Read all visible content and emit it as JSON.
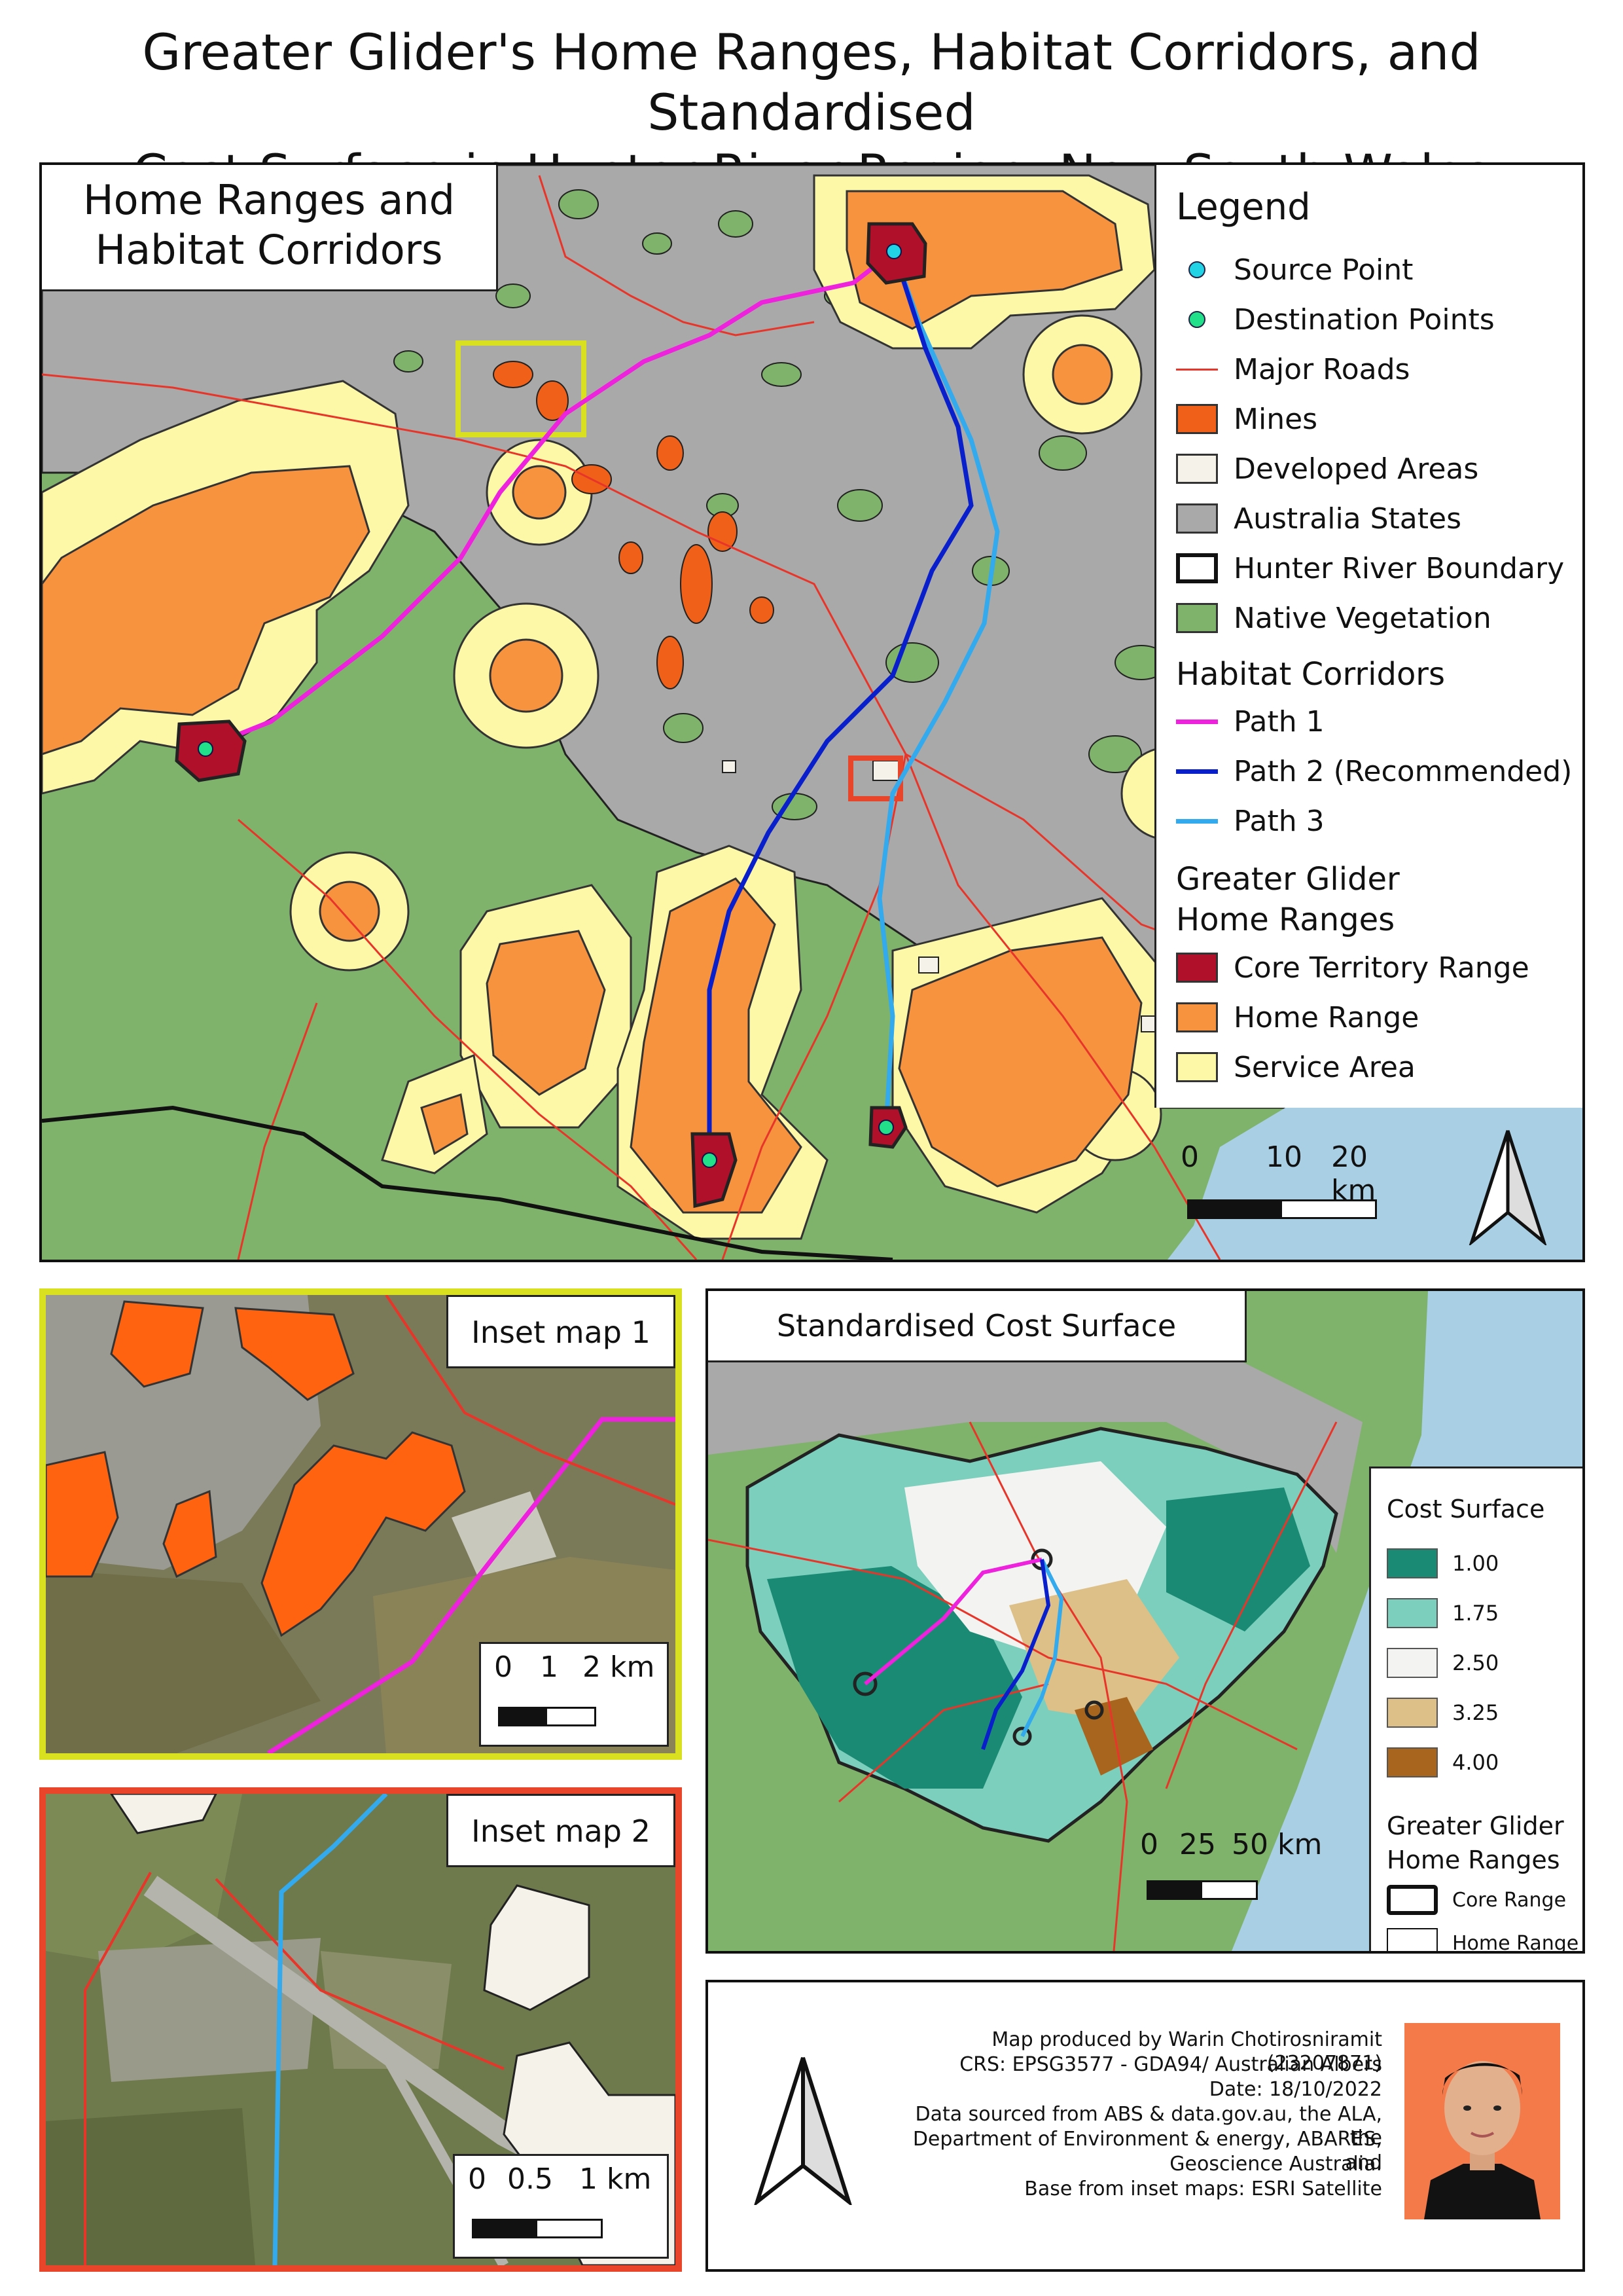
{
  "title": {
    "line1": "Greater Glider's Home Ranges, Habitat Corridors, and Standardised",
    "line2": "Cost Surface in Hunter River Region, New South Wales"
  },
  "main_map": {
    "panel_title_line1": "Home Ranges and",
    "panel_title_line2": "Habitat Corridors",
    "legend": {
      "heading": "Legend",
      "items": [
        {
          "label": "Source Point",
          "color": "#22d3e6"
        },
        {
          "label": "Destination Points",
          "color": "#22e08a"
        },
        {
          "label": "Major Roads",
          "color": "#e8352a"
        },
        {
          "label": "Mines",
          "color": "#f06018"
        },
        {
          "label": "Developed Areas",
          "color": "#f5f2ea"
        },
        {
          "label": "Australia States",
          "color": "#a9a9a9"
        },
        {
          "label": "Hunter River Boundary",
          "color": "#ffffff"
        },
        {
          "label": "Native Vegetation",
          "color": "#7fb26a"
        }
      ],
      "corridors_heading": "Habitat Corridors",
      "corridors": [
        {
          "label": "Path 1",
          "color": "#ee22dd"
        },
        {
          "label": "Path 2 (Recommended)",
          "color": "#0a1fcc"
        },
        {
          "label": "Path 3",
          "color": "#33aaee"
        }
      ],
      "ranges_heading_line1": "Greater Glider",
      "ranges_heading_line2": "Home Ranges",
      "ranges": [
        {
          "label": "Core Territory Range",
          "color": "#b0102a"
        },
        {
          "label": "Home Range",
          "color": "#f7923e"
        },
        {
          "label": "Service Area",
          "color": "#fdf8a8"
        }
      ]
    },
    "scale": {
      "t0": "0",
      "t1": "10",
      "t2": "20 km"
    }
  },
  "inset1": {
    "title": "Inset map 1",
    "scale": {
      "t0": "0",
      "t1": "1",
      "t2": "2 km"
    },
    "frame_color": "#d8e020"
  },
  "inset2": {
    "title": "Inset map 2",
    "scale": {
      "t0": "0",
      "t1": "0.5",
      "t2": "1 km"
    },
    "frame_color": "#e8452a"
  },
  "cost_map": {
    "title": "Standardised Cost Surface",
    "legend_title": "Cost Surface",
    "classes": [
      {
        "label": "1.00",
        "color": "#1a8a74"
      },
      {
        "label": "1.75",
        "color": "#7ccfbd"
      },
      {
        "label": "2.50",
        "color": "#f3f3f1"
      },
      {
        "label": "3.25",
        "color": "#dcc088"
      },
      {
        "label": "4.00",
        "color": "#a8651e"
      }
    ],
    "ranges_heading_line1": "Greater Glider",
    "ranges_heading_line2": "Home Ranges",
    "ranges": [
      {
        "label": "Core Range"
      },
      {
        "label": "Home Range"
      }
    ],
    "scale": {
      "t0": "0",
      "t1": "25",
      "t2": "50 km"
    }
  },
  "credits": {
    "lines": [
      "Map produced by Warin Chotirosniramit (23207871)",
      "CRS: EPSG3577 - GDA94/ Australian Albers",
      "Date: 18/10/2022",
      "Data sourced from ABS & data.gov.au, the ALA, the",
      "Department of Environment & energy, ABARES, and",
      "Geoscience Australia.",
      "Base from inset maps: ESRI Satellite"
    ]
  }
}
